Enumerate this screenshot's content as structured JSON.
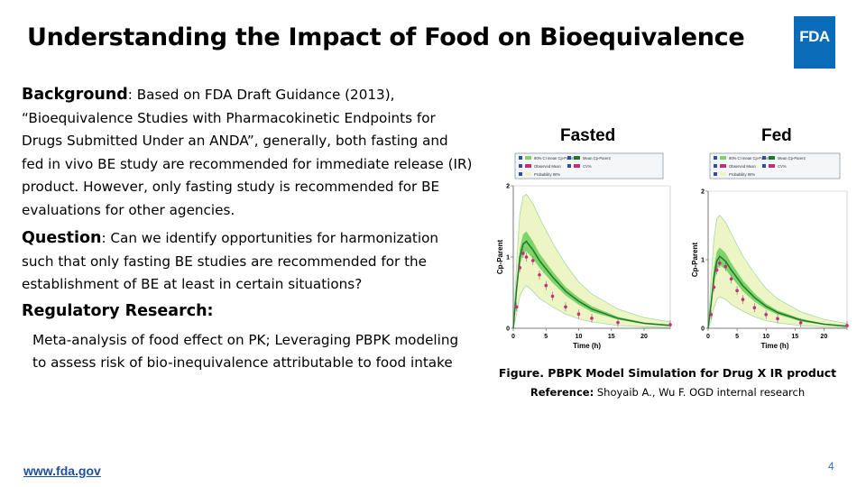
{
  "slide": {
    "title": "Understanding the Impact of Food on Bioequivalence",
    "logo_text": "FDA",
    "footer_link": "www.fda.gov",
    "page_number": "4"
  },
  "background": {
    "label": "Background",
    "text": ": Based on FDA Draft Guidance (2013), “Bioequivalence Studies with Pharmacokinetic Endpoints for Drugs Submitted Under an ANDA”, generally, both fasting and fed in vivo BE study are recommended for immediate release (IR) product. However, only fasting study is recommended for BE evaluations for other agencies."
  },
  "question": {
    "label": "Question",
    "text": ": Can we identify opportunities for harmonization such that only fasting BE studies are recommended for the establishment of BE at least in certain situations?"
  },
  "regulatory": {
    "heading": "Regulatory Research:",
    "text": "Meta-analysis of food effect on PK; Leveraging PBPK modeling to assess risk of bio-inequivalence attributable to food intake"
  },
  "figure": {
    "caption": "Figure. PBPK Model Simulation for Drug X IR product",
    "reference_label": "Reference:",
    "reference_text": " Shoyaib A., Wu F.  OGD internal research"
  },
  "colors": {
    "logo_blue": "#0a6cb8",
    "link_blue": "#1f4e9c",
    "outer_band": "#eef5c4",
    "inner_band": "#7fd36b",
    "mean_line": "#1d7a2c",
    "observed": "#c0307a"
  },
  "chart_data": [
    {
      "type": "line",
      "title": "Fasted",
      "xlabel": "Time (h)",
      "ylabel": "Cp-Parent",
      "xlim": [
        0,
        24
      ],
      "ylim": [
        0,
        2
      ],
      "x_ticks": [
        "0",
        "5",
        "10",
        "15",
        "20"
      ],
      "y_ticks": [
        "0",
        "1",
        "2"
      ],
      "legend": [
        "90% CI mean Cp-Parent",
        "Mean Cp-Parent",
        "Observed Mean",
        "CV%",
        "Probability 90%"
      ],
      "series": [
        {
          "name": "Mean Cp-Parent",
          "x": [
            0,
            0.5,
            1,
            1.5,
            2,
            3,
            4,
            6,
            8,
            10,
            12,
            16,
            20,
            24
          ],
          "y": [
            0,
            0.55,
            1.0,
            1.18,
            1.22,
            1.1,
            0.95,
            0.72,
            0.52,
            0.38,
            0.27,
            0.14,
            0.07,
            0.04
          ]
        },
        {
          "name": "Observed Mean",
          "x": [
            0.5,
            1,
            1.5,
            2,
            3,
            4,
            5,
            6,
            8,
            10,
            12,
            16,
            24
          ],
          "y": [
            0.3,
            0.85,
            1.05,
            1.0,
            0.95,
            0.75,
            0.6,
            0.45,
            0.3,
            0.2,
            0.14,
            0.08,
            0.05
          ]
        }
      ],
      "probability_band_upper": [
        0,
        0.9,
        1.6,
        1.85,
        1.88,
        1.75,
        1.55,
        1.2,
        0.9,
        0.65,
        0.48,
        0.27,
        0.15,
        0.09
      ],
      "probability_band_lower": [
        0,
        0.2,
        0.45,
        0.55,
        0.6,
        0.52,
        0.42,
        0.3,
        0.2,
        0.13,
        0.09,
        0.04,
        0.02,
        0.01
      ],
      "ci_band_upper": [
        0,
        0.65,
        1.12,
        1.32,
        1.36,
        1.22,
        1.05,
        0.8,
        0.58,
        0.43,
        0.31,
        0.16,
        0.08,
        0.05
      ],
      "ci_band_lower": [
        0,
        0.45,
        0.88,
        1.04,
        1.08,
        0.98,
        0.85,
        0.64,
        0.46,
        0.33,
        0.23,
        0.12,
        0.06,
        0.03
      ]
    },
    {
      "type": "line",
      "title": "Fed",
      "xlabel": "Time (h)",
      "ylabel": "Cp-Parent",
      "xlim": [
        0,
        24
      ],
      "ylim": [
        0,
        2
      ],
      "x_ticks": [
        "0",
        "5",
        "10",
        "15",
        "20"
      ],
      "y_ticks": [
        "0",
        "1",
        "2"
      ],
      "legend": [
        "90% CI mean Cp-Parent",
        "Mean Cp-Parent",
        "Observed Mean",
        "CV%",
        "Probability 90%"
      ],
      "series": [
        {
          "name": "Mean Cp-Parent",
          "x": [
            0,
            0.5,
            1,
            1.5,
            2,
            3,
            4,
            6,
            8,
            10,
            12,
            16,
            20,
            24
          ],
          "y": [
            0,
            0.35,
            0.75,
            0.98,
            1.05,
            0.98,
            0.85,
            0.62,
            0.45,
            0.32,
            0.23,
            0.12,
            0.06,
            0.03
          ]
        },
        {
          "name": "Observed Mean",
          "x": [
            0.5,
            1,
            1.5,
            2,
            3,
            4,
            5,
            6,
            8,
            10,
            12,
            16,
            24
          ],
          "y": [
            0.2,
            0.6,
            0.85,
            0.95,
            0.9,
            0.72,
            0.55,
            0.42,
            0.3,
            0.2,
            0.14,
            0.08,
            0.04
          ]
        }
      ],
      "probability_band_upper": [
        0,
        0.7,
        1.3,
        1.6,
        1.65,
        1.55,
        1.38,
        1.05,
        0.8,
        0.58,
        0.43,
        0.24,
        0.13,
        0.07
      ],
      "probability_band_lower": [
        0,
        0.1,
        0.3,
        0.42,
        0.46,
        0.42,
        0.35,
        0.25,
        0.17,
        0.11,
        0.08,
        0.04,
        0.02,
        0.01
      ],
      "ci_band_upper": [
        0,
        0.44,
        0.88,
        1.12,
        1.18,
        1.1,
        0.95,
        0.7,
        0.51,
        0.36,
        0.26,
        0.14,
        0.07,
        0.04
      ],
      "ci_band_lower": [
        0,
        0.27,
        0.63,
        0.85,
        0.92,
        0.86,
        0.75,
        0.54,
        0.39,
        0.28,
        0.2,
        0.1,
        0.05,
        0.02
      ]
    }
  ]
}
